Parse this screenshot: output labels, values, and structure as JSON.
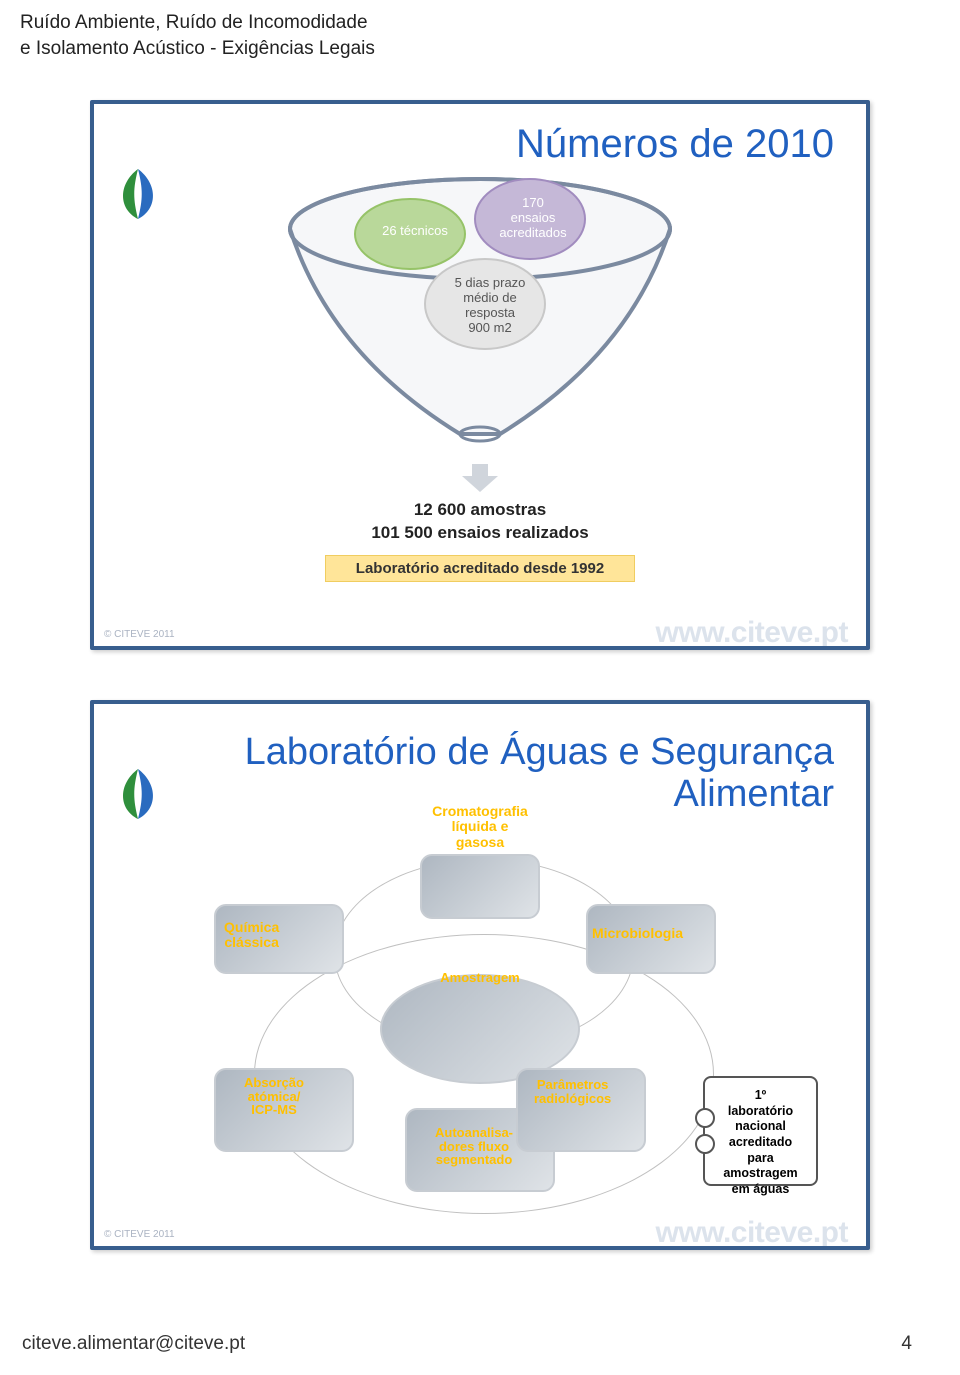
{
  "colors": {
    "frame_border": "#385e8e",
    "title_color": "#2060c0",
    "ghost_text": "#dce3ec",
    "yellow_fill": "#ffe599",
    "yellow_border": "#f0cd60",
    "accent_orange": "#ffc000",
    "bubble_green_fill": "#b9d89a",
    "bubble_green_stroke": "#96c368",
    "bubble_purple_fill": "#c5b8d7",
    "bubble_purple_stroke": "#a18cbf",
    "bubble_grey_fill": "#e6e6e6",
    "bubble_grey_stroke": "#c8c8c8",
    "arrow_fill": "#d0d5dc",
    "funnel_fill": "#f6f7f9",
    "funnel_stroke": "#7b8aa0"
  },
  "header": {
    "line1": "Ruído Ambiente, Ruído de Incomodidade",
    "line2": "e Isolamento Acústico - Exigências Legais"
  },
  "slide1": {
    "title": "Números de 2010",
    "bubbles": {
      "green": "26 técnicos",
      "purple": "170\nensaios\nacreditados",
      "grey": "5 dias prazo\nmédio de\nresposta\n900 m2"
    },
    "out1": "12 600 amostras",
    "out2": "101 500 ensaios realizados",
    "yellow": "Laboratório acreditado desde 1992",
    "copyright": "© CITEVE 2011",
    "site": "www.citeve.pt"
  },
  "slide2": {
    "title": "Laboratório de Águas e Segurança\nAlimentar",
    "nodes": {
      "crom": "Cromatografia\nlíquida e\ngasosa",
      "quim": "Química\nclássica",
      "micro": "Microbiologia",
      "amostr": "Amostragem",
      "abs": "Absorção\natómica/\nICP-MS",
      "auto": "Autoanalisa-\ndores fluxo\nsegmentado",
      "rad": "Parâmetros\nradiológicos"
    },
    "badge": "1º\nlaboratório\nnacional\nacreditado\npara\namostragem\nem águas",
    "copyright": "© CITEVE 2011",
    "site": "www.citeve.pt"
  },
  "footer": {
    "mail": "citeve.alimentar@citeve.pt",
    "page": "4"
  }
}
